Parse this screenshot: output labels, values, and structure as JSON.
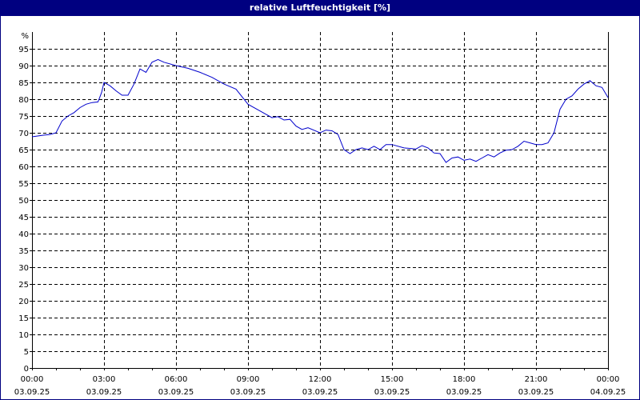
{
  "window": {
    "title": "relative Luftfeuchtigkeit [%]"
  },
  "colors": {
    "titlebar": "#000080",
    "line": "#0000cc",
    "grid": "#000000",
    "background": "#ffffff"
  },
  "chart_data": {
    "type": "line",
    "title": "relative Luftfeuchtigkeit [%]",
    "xlabel": "",
    "ylabel": "%",
    "ylim": [
      0,
      100
    ],
    "yticks": [
      0,
      5,
      10,
      15,
      20,
      25,
      30,
      35,
      40,
      45,
      50,
      55,
      60,
      65,
      70,
      75,
      80,
      85,
      90,
      95
    ],
    "grid": true,
    "xticks": [
      {
        "time": "00:00",
        "date": "03.09.25"
      },
      {
        "time": "03:00",
        "date": "03.09.25"
      },
      {
        "time": "06:00",
        "date": "03.09.25"
      },
      {
        "time": "09:00",
        "date": "03.09.25"
      },
      {
        "time": "12:00",
        "date": "03.09.25"
      },
      {
        "time": "15:00",
        "date": "03.09.25"
      },
      {
        "time": "18:00",
        "date": "03.09.25"
      },
      {
        "time": "21:00",
        "date": "03.09.25"
      },
      {
        "time": "00:00",
        "date": "04.09.25"
      }
    ],
    "series": [
      {
        "name": "relative Luftfeuchtigkeit",
        "x_hours": [
          0,
          0.5,
          0.75,
          1.0,
          1.25,
          1.5,
          1.75,
          2.0,
          2.25,
          2.5,
          2.75,
          2.9,
          3.0,
          3.25,
          3.5,
          3.75,
          4.0,
          4.25,
          4.5,
          4.75,
          5.0,
          5.25,
          5.5,
          6.0,
          6.5,
          7.0,
          7.5,
          8.0,
          8.5,
          9.0,
          9.5,
          10.0,
          10.25,
          10.5,
          10.75,
          11.0,
          11.25,
          11.5,
          12.0,
          12.25,
          12.5,
          12.75,
          13.0,
          13.25,
          13.5,
          13.75,
          14.0,
          14.25,
          14.5,
          14.75,
          15.0,
          15.5,
          16.0,
          16.25,
          16.5,
          16.75,
          17.0,
          17.25,
          17.5,
          17.75,
          18.0,
          18.25,
          18.5,
          18.75,
          19.0,
          19.25,
          19.5,
          19.75,
          20.0,
          20.25,
          20.5,
          20.75,
          21.0,
          21.25,
          21.5,
          21.75,
          22.0,
          22.25,
          22.5,
          22.75,
          23.0,
          23.25,
          23.5,
          23.75,
          24.0
        ],
        "values": [
          68.8,
          69.3,
          69.5,
          70.0,
          73.5,
          75.0,
          76.0,
          77.5,
          78.5,
          79.0,
          79.2,
          82.0,
          85.0,
          84.0,
          82.5,
          81.2,
          81.2,
          84.5,
          89.0,
          88.0,
          91.0,
          91.8,
          91.0,
          90.0,
          89.2,
          88.0,
          86.5,
          84.5,
          83.0,
          78.5,
          76.5,
          74.5,
          74.8,
          73.8,
          74.0,
          72.0,
          71.0,
          71.5,
          70.0,
          70.8,
          70.6,
          69.5,
          65.0,
          63.8,
          65.0,
          65.5,
          65.0,
          66.0,
          65.0,
          66.5,
          66.5,
          65.5,
          65.2,
          66.2,
          65.5,
          64.0,
          63.8,
          61.2,
          62.5,
          62.8,
          61.8,
          62.2,
          61.5,
          62.5,
          63.5,
          62.8,
          64.0,
          64.8,
          65.0,
          66.0,
          67.5,
          67.0,
          66.5,
          66.5,
          67.0,
          70.0,
          77.0,
          80.0,
          81.0,
          83.0,
          84.5,
          85.5,
          84.0,
          83.5,
          80.5
        ]
      }
    ],
    "xlim_hours": [
      0,
      24
    ]
  }
}
